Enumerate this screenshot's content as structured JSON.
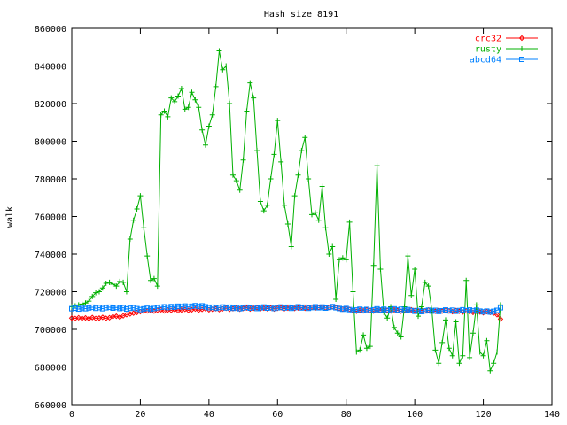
{
  "chart_data": {
    "type": "line",
    "title": "Hash size 8191",
    "xlabel": "",
    "ylabel": "walk",
    "xlim": [
      0,
      140
    ],
    "ylim": [
      660000,
      860000
    ],
    "xticks": [
      0,
      20,
      40,
      60,
      80,
      100,
      120,
      140
    ],
    "yticks": [
      660000,
      680000,
      700000,
      720000,
      740000,
      760000,
      780000,
      800000,
      820000,
      840000,
      860000
    ],
    "grid": false,
    "legend": "top-right",
    "x": [
      0,
      1,
      2,
      3,
      4,
      5,
      6,
      7,
      8,
      9,
      10,
      11,
      12,
      13,
      14,
      15,
      16,
      17,
      18,
      19,
      20,
      21,
      22,
      23,
      24,
      25,
      26,
      27,
      28,
      29,
      30,
      31,
      32,
      33,
      34,
      35,
      36,
      37,
      38,
      39,
      40,
      41,
      42,
      43,
      44,
      45,
      46,
      47,
      48,
      49,
      50,
      51,
      52,
      53,
      54,
      55,
      56,
      57,
      58,
      59,
      60,
      61,
      62,
      63,
      64,
      65,
      66,
      67,
      68,
      69,
      70,
      71,
      72,
      73,
      74,
      75,
      76,
      77,
      78,
      79,
      80,
      81,
      82,
      83,
      84,
      85,
      86,
      87,
      88,
      89,
      90,
      91,
      92,
      93,
      94,
      95,
      96,
      97,
      98,
      99,
      100,
      101,
      102,
      103,
      104,
      105,
      106,
      107,
      108,
      109,
      110,
      111,
      112,
      113,
      114,
      115,
      116,
      117,
      118,
      119,
      120,
      121,
      122,
      123,
      124,
      125
    ],
    "series": [
      {
        "name": "crc32",
        "color": "#ff0000",
        "marker": "diamond",
        "values": [
          706000,
          705800,
          706200,
          705900,
          706100,
          705700,
          706300,
          705800,
          706000,
          706400,
          705900,
          706200,
          706800,
          707000,
          706500,
          707200,
          707800,
          708200,
          708600,
          709000,
          709400,
          709600,
          709800,
          710000,
          709700,
          710200,
          710400,
          709800,
          710300,
          710100,
          710500,
          709900,
          710300,
          710600,
          710100,
          710400,
          710800,
          710200,
          710600,
          710900,
          710400,
          710700,
          711000,
          710500,
          710900,
          711200,
          710600,
          711000,
          711300,
          710700,
          711100,
          711400,
          710800,
          711200,
          711500,
          710900,
          711300,
          711000,
          711400,
          710800,
          711200,
          711500,
          711000,
          711300,
          711600,
          711100,
          711400,
          711700,
          711200,
          711500,
          711800,
          711300,
          711600,
          711900,
          711400,
          711700,
          712000,
          711500,
          711200,
          710800,
          711200,
          710600,
          710000,
          709600,
          710200,
          709800,
          710400,
          710000,
          709700,
          710300,
          709900,
          710500,
          710100,
          709800,
          710400,
          710000,
          709600,
          710200,
          709800,
          710400,
          710000,
          709600,
          710200,
          709800,
          710300,
          709900,
          709600,
          710100,
          709700,
          710200,
          709800,
          709400,
          710000,
          709600,
          709200,
          709800,
          709400,
          709000,
          709600,
          709200,
          708800,
          709400,
          709000,
          708600,
          707800,
          705500
        ]
      },
      {
        "name": "rusty",
        "color": "#00b000",
        "marker": "plus",
        "values": [
          712000,
          712500,
          713000,
          713500,
          714000,
          715000,
          717500,
          719500,
          720000,
          722000,
          724500,
          725000,
          724000,
          723000,
          725500,
          725000,
          720000,
          748000,
          758000,
          764000,
          771000,
          754000,
          739000,
          726000,
          727000,
          723000,
          814000,
          816000,
          813000,
          823000,
          821000,
          824000,
          828000,
          817000,
          818000,
          826000,
          822000,
          818000,
          806000,
          798000,
          808000,
          814000,
          829000,
          848000,
          838000,
          840000,
          820000,
          782000,
          779000,
          774000,
          790000,
          816000,
          831000,
          823000,
          795000,
          768000,
          763000,
          766000,
          780000,
          793000,
          811000,
          789000,
          766000,
          756000,
          744000,
          771000,
          782000,
          795000,
          802000,
          780000,
          761000,
          762000,
          758000,
          776000,
          754000,
          740000,
          744000,
          716000,
          737000,
          738000,
          737000,
          757000,
          720000,
          688000,
          689000,
          697000,
          690000,
          691000,
          734000,
          787000,
          732000,
          709000,
          706000,
          712000,
          701000,
          698000,
          696000,
          712000,
          739000,
          718000,
          732000,
          707000,
          712000,
          725000,
          723000,
          710000,
          689000,
          682000,
          693000,
          705000,
          690000,
          686000,
          704000,
          682000,
          686000,
          726000,
          685000,
          698000,
          713000,
          688000,
          686000,
          694000,
          678000,
          682000,
          688000,
          713000
        ]
      },
      {
        "name": "abcd64",
        "color": "#0080ff",
        "marker": "square",
        "values": [
          711000,
          711300,
          710800,
          711500,
          711000,
          711400,
          711800,
          711200,
          711600,
          711000,
          711500,
          711800,
          711300,
          711700,
          711100,
          711500,
          710800,
          711200,
          711500,
          711000,
          710500,
          710900,
          711200,
          710700,
          711100,
          711500,
          711800,
          712000,
          711600,
          712100,
          711800,
          712300,
          712000,
          712400,
          711900,
          712300,
          712600,
          712100,
          712500,
          712000,
          711500,
          711800,
          711200,
          711600,
          711900,
          711400,
          711800,
          711200,
          711600,
          711000,
          711400,
          711800,
          711300,
          711700,
          711100,
          711500,
          711900,
          711300,
          711700,
          711100,
          711500,
          711900,
          711400,
          711800,
          711200,
          711600,
          712000,
          711400,
          711800,
          711200,
          711600,
          712000,
          711500,
          711900,
          711300,
          711700,
          712100,
          711500,
          711100,
          710700,
          711100,
          710500,
          709900,
          710300,
          710700,
          710200,
          710600,
          710000,
          710400,
          710900,
          710300,
          710700,
          710100,
          710500,
          710900,
          710300,
          710700,
          710100,
          710500,
          710000,
          709600,
          710000,
          709400,
          709800,
          710200,
          709700,
          710100,
          709500,
          709900,
          710300,
          709800,
          710200,
          709600,
          710000,
          710400,
          709900,
          710300,
          709800,
          710200,
          709700,
          709300,
          709700,
          709200,
          709600,
          710100,
          711500
        ]
      }
    ]
  }
}
